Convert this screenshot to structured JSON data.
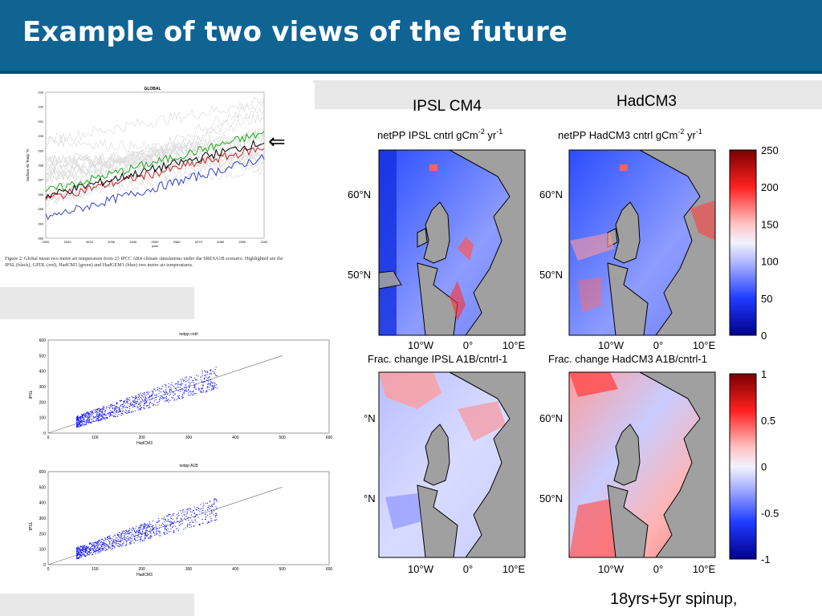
{
  "slide": {
    "title": "Example of two views of the future",
    "label_ipsl": "IPSL CM4",
    "label_hadcm3": "HadCM3",
    "footer_note": "18yrs+5yr spinup,"
  },
  "global_figure": {
    "title": "GLOBAL",
    "ylabel": "Surface Air Temp °K",
    "xlabel": "year",
    "yticks": [
      "283",
      "284",
      "285",
      "286",
      "287",
      "288",
      "289",
      "290",
      "291",
      "292",
      "293"
    ],
    "xticks": [
      "2000",
      "2010",
      "2020",
      "2030",
      "2040",
      "2050",
      "2060",
      "2070",
      "2080",
      "2090",
      "2100"
    ],
    "caption": "Figure 2: Global mean two metre air temperature from 23 IPCC AR4 climate simulations under the SRESA1B scenario. Highlighted are the IPSL (black), GFDL (red), HadCM3 (green) and HadGEM1 (blue) two metre air temperatures.",
    "arrow": "⇐",
    "colors": {
      "ipsl": "#000000",
      "gfdl": "#cc2222",
      "hadcm3": "#22aa22",
      "hadgem1": "#3344cc",
      "others": "#d8d8d8"
    }
  },
  "scatter_cntrl": {
    "title": "netpp cntrl",
    "xlabel": "HadCM3",
    "ylabel": "IPSL",
    "xticks": [
      "0",
      "100",
      "200",
      "300",
      "400",
      "500",
      "600"
    ],
    "yticks": [
      "0",
      "100",
      "200",
      "300",
      "400",
      "500",
      "600"
    ],
    "xlim": [
      0,
      600
    ],
    "ylim": [
      0,
      600
    ]
  },
  "scatter_a1b": {
    "title": "netpp A1B",
    "xlabel": "HadCM3",
    "ylabel": "IPSL",
    "xticks": [
      "0",
      "100",
      "200",
      "300",
      "400",
      "500",
      "600"
    ],
    "yticks": [
      "0",
      "100",
      "200",
      "300",
      "400",
      "500",
      "600"
    ],
    "xlim": [
      0,
      600
    ],
    "ylim": [
      0,
      600
    ]
  },
  "maps": {
    "netpp_ipsl_title": "netPP IPSL cntrl gCm",
    "netpp_hadcm3_title": "netPP HadCM3 cntrl gCm",
    "unit_exp1": "-2",
    "unit_yr": " yr",
    "unit_exp2": "-1",
    "frac_ipsl_title": "Frac. change IPSL A1B/cntrl-1",
    "frac_hadcm3_title": "Frac. change HadCM3 A1B/cntrl-1",
    "lat60": "60°N",
    "lat50": "50°N",
    "lat60_cut": "°N",
    "lat50_cut": "°N",
    "lon10w": "10°W",
    "lon0": "0°",
    "lon10e": "10°E",
    "colorbar_top": [
      "250",
      "200",
      "150",
      "100",
      "50",
      "0"
    ],
    "colorbar_bottom": [
      "1",
      "0.5",
      "0",
      "-0.5",
      "-1"
    ]
  }
}
